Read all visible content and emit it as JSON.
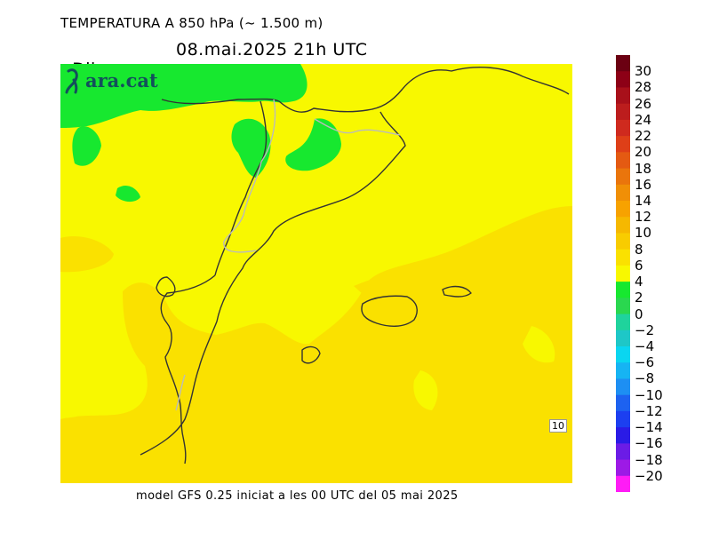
{
  "title_line1": "TEMPERATURA A 850 hPa (~ 1.500 m)",
  "day": "Dijous",
  "datetime": "08.mai.2025 21h UTC",
  "brand": "ara.cat",
  "footer": "model GFS 0.25 iniciat a les 00 UTC del 05 mai 2025",
  "contour_label": "10",
  "colorbar": {
    "labels": [
      "30",
      "28",
      "26",
      "24",
      "22",
      "20",
      "18",
      "16",
      "14",
      "12",
      "10",
      "8",
      "6",
      "4",
      "2",
      "0",
      "−2",
      "−4",
      "−6",
      "−8",
      "−10",
      "−12",
      "−14",
      "−16",
      "−18",
      "−20"
    ],
    "colors": [
      "#6b0012",
      "#8d0016",
      "#a8101a",
      "#bc1d1d",
      "#cf2a1e",
      "#de3f18",
      "#e45a12",
      "#ea750c",
      "#f08f06",
      "#f7a200",
      "#f6b800",
      "#f8cc00",
      "#fae100",
      "#f8f800",
      "#17e82f",
      "#2ad74f",
      "#1fd39c",
      "#1ec7c7",
      "#0ad6f0",
      "#16b4f3",
      "#1d8ff3",
      "#1d62f0",
      "#1c3ff0",
      "#2a1be6",
      "#6b1ce6",
      "#9d1ae6",
      "#ff1cf6"
    ]
  },
  "colors": {
    "yellow": "#f8f800",
    "gold": "#fae100",
    "green": "#17e82f",
    "brand": "#134f5c"
  }
}
